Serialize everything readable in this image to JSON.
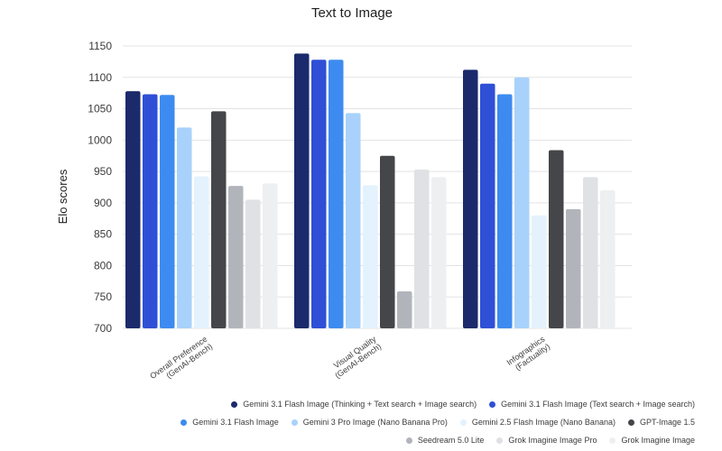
{
  "chart_data": {
    "type": "bar",
    "title": "Text to Image",
    "xlabel": "",
    "ylabel": "Elo scores",
    "ylim": [
      700,
      1150
    ],
    "yticks": [
      700,
      750,
      800,
      850,
      900,
      950,
      1000,
      1050,
      1100,
      1150
    ],
    "grid": true,
    "legend_position": "bottom-right",
    "categories": [
      [
        "Overall Preference",
        "(GenAI-Bench)"
      ],
      [
        "Visual Quality",
        "(GenAI-Bench)"
      ],
      [
        "Infographics",
        "(Factuality)"
      ]
    ],
    "series": [
      {
        "name": "Gemini 3.1 Flash Image (Thinking + Text search + Image search)",
        "color": "#1b2a6b",
        "values": [
          1078,
          1138,
          1112
        ]
      },
      {
        "name": "Gemini 3.1 Flash Image (Text search + Image search)",
        "color": "#2f4fd6",
        "values": [
          1073,
          1128,
          1090
        ]
      },
      {
        "name": "Gemini 3.1 Flash Image",
        "color": "#3d8bf0",
        "values": [
          1072,
          1128,
          1073
        ]
      },
      {
        "name": "Gemini 3 Pro Image (Nano Banana Pro)",
        "color": "#a8d2fb",
        "values": [
          1020,
          1043,
          1100
        ]
      },
      {
        "name": "Gemini 2.5 Flash Image (Nano Banana)",
        "color": "#e3f2fd",
        "values": [
          942,
          928,
          880
        ]
      },
      {
        "name": "GPT-Image 1.5",
        "color": "#454649",
        "values": [
          1046,
          975,
          984
        ]
      },
      {
        "name": "Seedream 5.0 Lite",
        "color": "#b1b5bb",
        "values": [
          927,
          759,
          890
        ]
      },
      {
        "name": "Grok Imagine Image Pro",
        "color": "#dfe1e5",
        "values": [
          905,
          953,
          941
        ]
      },
      {
        "name": "Grok Imagine Image",
        "color": "#eeeff1",
        "values": [
          931,
          941,
          920
        ]
      }
    ]
  },
  "legend_rows": [
    [
      0,
      1
    ],
    [
      2,
      3,
      4,
      5
    ],
    [
      6,
      7,
      8
    ]
  ]
}
